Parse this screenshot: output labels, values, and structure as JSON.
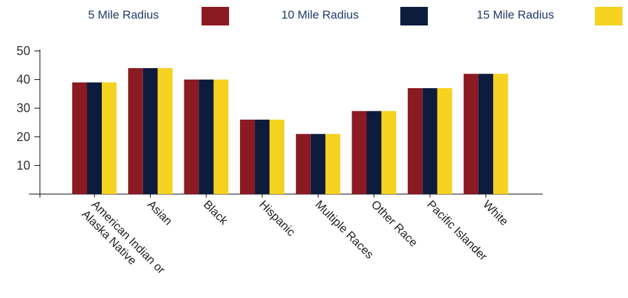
{
  "chart_data": {
    "type": "bar",
    "categories": [
      [
        "American Indian or",
        "Alaska Native"
      ],
      [
        "Asian"
      ],
      [
        "Black"
      ],
      [
        "Hispanic"
      ],
      [
        "Multiple Races"
      ],
      [
        "Other Race"
      ],
      [
        "Pacific Islander"
      ],
      [
        "White"
      ]
    ],
    "series": [
      {
        "name": "5 Mile Radius",
        "color": "#8b1a22",
        "values": [
          39,
          44,
          40,
          26,
          21,
          29,
          37,
          42
        ]
      },
      {
        "name": "10 Mile Radius",
        "color": "#0d1b3c",
        "values": [
          39,
          44,
          40,
          26,
          21,
          29,
          37,
          42
        ]
      },
      {
        "name": "15 Mile Radius",
        "color": "#f5d21f",
        "values": [
          39,
          44,
          40,
          26,
          21,
          29,
          37,
          42
        ]
      }
    ],
    "yticks": [
      10,
      20,
      30,
      40,
      50
    ],
    "ylim": [
      0,
      50
    ],
    "grid": false,
    "legend_position": "top",
    "title": "",
    "xlabel": "",
    "ylabel": ""
  }
}
